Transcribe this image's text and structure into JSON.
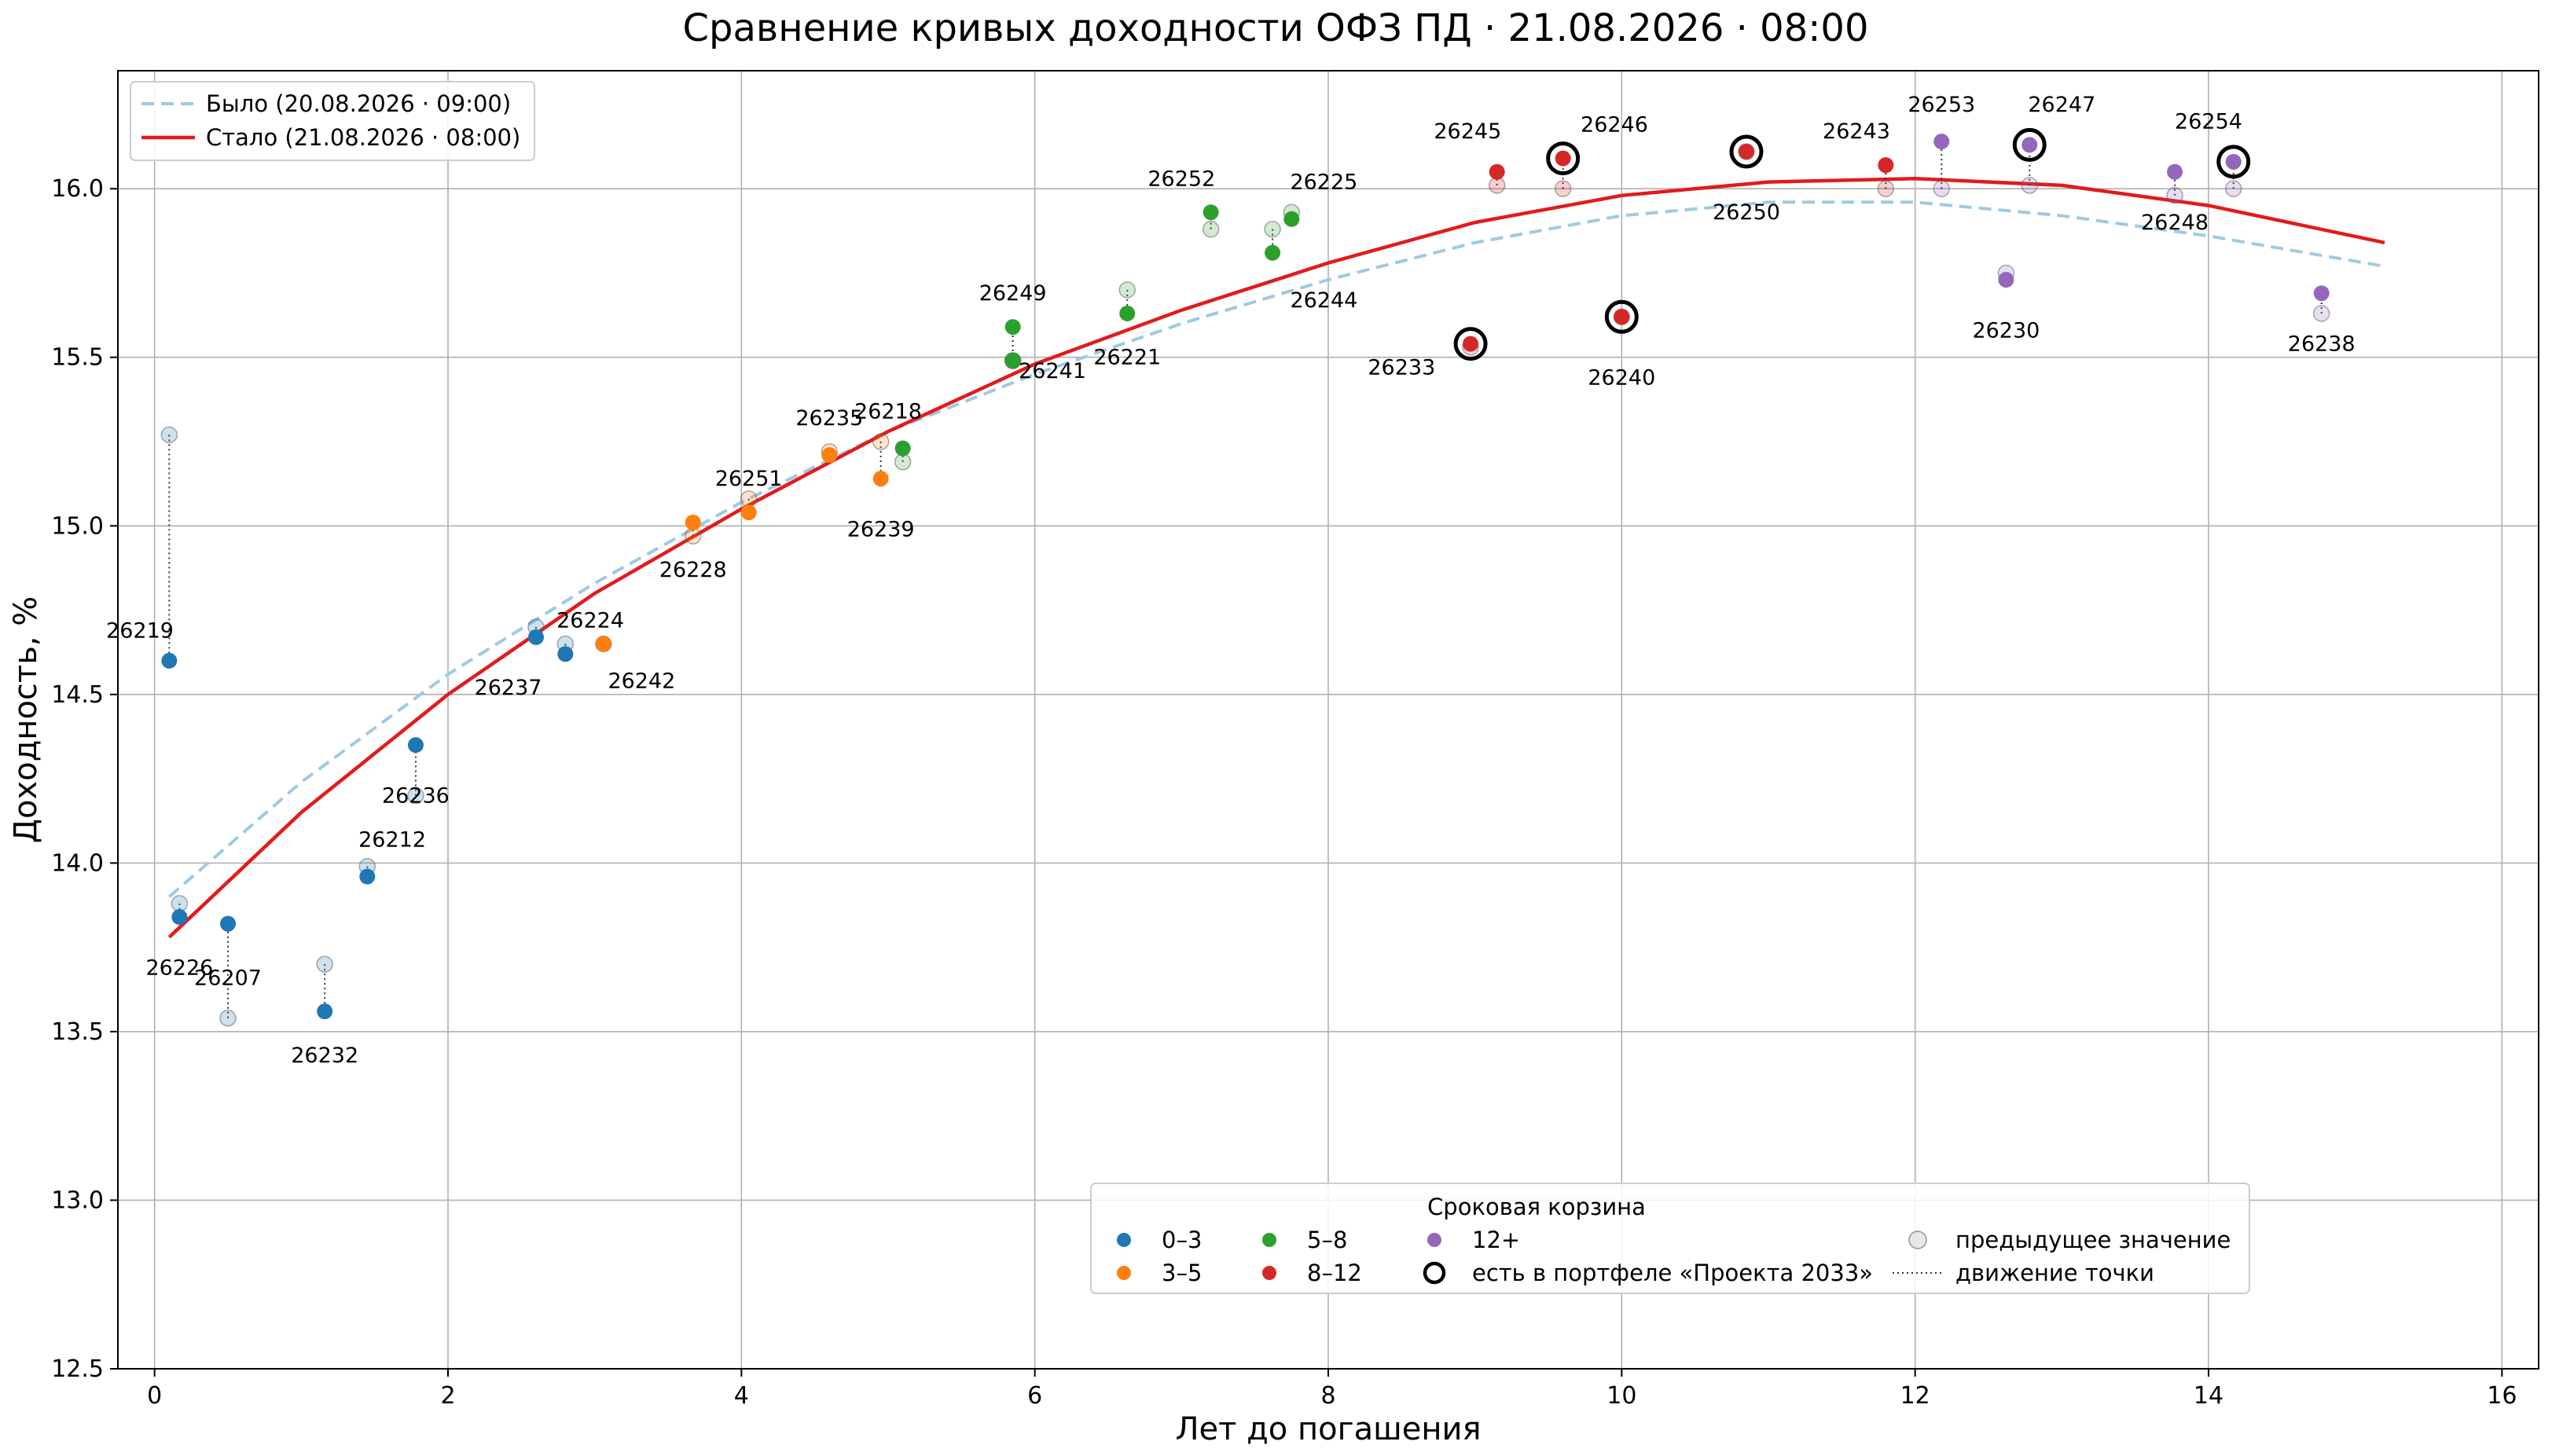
{
  "chart_data": {
    "type": "scatter",
    "title": "Сравнение кривых доходности ОФЗ ПД · 21.08.2026 · 08:00",
    "xlabel": "Лет до погашения",
    "ylabel": "Доходность, %",
    "xlim": [
      -0.25,
      16.25
    ],
    "ylim": [
      12.5,
      16.35
    ],
    "xticks": [
      0,
      2,
      4,
      6,
      8,
      10,
      12,
      14,
      16
    ],
    "yticks": [
      12.5,
      13.0,
      13.5,
      14.0,
      14.5,
      15.0,
      15.5,
      16.0
    ],
    "grid": true,
    "colors": {
      "0–3": "#1f77b4",
      "3–5": "#ff7f0e",
      "5–8": "#2ca02c",
      "8–12": "#d62728",
      "12+": "#9467bd",
      "curve_old": "#9ecae1",
      "curve_new": "#e31a1c"
    },
    "curves": [
      {
        "name": "Было (20.08.2026 · 09:00)",
        "style": "dashed",
        "color": "#9ecae1",
        "x": [
          0.1,
          1,
          2,
          3,
          4,
          5,
          6,
          7,
          8,
          9,
          10,
          11,
          12,
          13,
          14,
          15.2
        ],
        "y": [
          13.9,
          14.24,
          14.56,
          14.83,
          15.07,
          15.28,
          15.45,
          15.6,
          15.73,
          15.84,
          15.92,
          15.96,
          15.96,
          15.92,
          15.86,
          15.77
        ]
      },
      {
        "name": "Стало (21.08.2026 · 08:00)",
        "style": "solid",
        "color": "#e31a1c",
        "x": [
          0.1,
          1,
          2,
          3,
          4,
          5,
          6,
          7,
          8,
          9,
          10,
          11,
          12,
          13,
          14,
          15.2
        ],
        "y": [
          13.78,
          14.15,
          14.5,
          14.8,
          15.05,
          15.28,
          15.48,
          15.64,
          15.78,
          15.9,
          15.98,
          16.02,
          16.03,
          16.01,
          15.95,
          15.84
        ]
      }
    ],
    "points": [
      {
        "id": "26219",
        "x": 0.1,
        "y": 14.6,
        "prev": 15.27,
        "bucket": "0–3",
        "portfolio": false,
        "lx": -0.1,
        "ly": 14.69
      },
      {
        "id": "26226",
        "x": 0.17,
        "y": 13.84,
        "prev": 13.88,
        "bucket": "0–3",
        "portfolio": false,
        "lx": 0.17,
        "ly": 13.69
      },
      {
        "id": "26207",
        "x": 0.5,
        "y": 13.82,
        "prev": 13.54,
        "bucket": "0–3",
        "portfolio": false,
        "lx": 0.5,
        "ly": 13.66
      },
      {
        "id": "26232",
        "x": 1.16,
        "y": 13.56,
        "prev": 13.7,
        "bucket": "0–3",
        "portfolio": false,
        "lx": 1.16,
        "ly": 13.43
      },
      {
        "id": "26212",
        "x": 1.45,
        "y": 13.96,
        "prev": 13.99,
        "bucket": "0–3",
        "portfolio": false,
        "lx": 1.62,
        "ly": 14.07
      },
      {
        "id": "26236",
        "x": 1.78,
        "y": 14.35,
        "prev": 14.2,
        "bucket": "0–3",
        "portfolio": false,
        "lx": 1.78,
        "ly": 14.2
      },
      {
        "id": "26237",
        "x": 2.6,
        "y": 14.67,
        "prev": 14.7,
        "bucket": "0–3",
        "portfolio": false,
        "lx": 2.41,
        "ly": 14.52
      },
      {
        "id": "26224",
        "x": 2.8,
        "y": 14.62,
        "prev": 14.65,
        "bucket": "0–3",
        "portfolio": false,
        "lx": 2.97,
        "ly": 14.72
      },
      {
        "id": "26242",
        "x": 3.06,
        "y": 14.65,
        "prev": 14.65,
        "bucket": "3–5",
        "portfolio": false,
        "lx": 3.32,
        "ly": 14.54
      },
      {
        "id": "26228",
        "x": 3.67,
        "y": 15.01,
        "prev": 14.97,
        "bucket": "3–5",
        "portfolio": false,
        "lx": 3.67,
        "ly": 14.87
      },
      {
        "id": "26251",
        "x": 4.05,
        "y": 15.04,
        "prev": 15.08,
        "bucket": "3–5",
        "portfolio": false,
        "lx": 4.05,
        "ly": 15.14
      },
      {
        "id": "26235",
        "x": 4.6,
        "y": 15.21,
        "prev": 15.22,
        "bucket": "3–5",
        "portfolio": false,
        "lx": 4.6,
        "ly": 15.32
      },
      {
        "id": "26239",
        "x": 4.95,
        "y": 15.14,
        "prev": 15.25,
        "bucket": "3–5",
        "portfolio": false,
        "lx": 4.95,
        "ly": 14.99
      },
      {
        "id": "26218",
        "x": 5.1,
        "y": 15.23,
        "prev": 15.19,
        "bucket": "5–8",
        "portfolio": false,
        "lx": 5.0,
        "ly": 15.34
      },
      {
        "id": "26249",
        "x": 5.85,
        "y": 15.59,
        "prev": 15.49,
        "bucket": "5–8",
        "portfolio": false,
        "lx": 5.85,
        "ly": 15.69
      },
      {
        "id": "26241",
        "x": 5.85,
        "y": 15.49,
        "prev": 15.49,
        "bucket": "5–8",
        "portfolio": false,
        "lx": 6.12,
        "ly": 15.46
      },
      {
        "id": "26221",
        "x": 6.63,
        "y": 15.63,
        "prev": 15.7,
        "bucket": "5–8",
        "portfolio": false,
        "lx": 6.63,
        "ly": 15.5
      },
      {
        "id": "26252",
        "x": 7.2,
        "y": 15.93,
        "prev": 15.88,
        "bucket": "5–8",
        "portfolio": false,
        "lx": 7.0,
        "ly": 16.03
      },
      {
        "id": "26225",
        "x": 7.75,
        "y": 15.91,
        "prev": 15.93,
        "bucket": "5–8",
        "portfolio": false,
        "lx": 7.97,
        "ly": 16.02
      },
      {
        "id": "26244",
        "x": 7.62,
        "y": 15.81,
        "prev": 15.88,
        "bucket": "5–8",
        "portfolio": false,
        "lx": 7.97,
        "ly": 15.67
      },
      {
        "id": "26245",
        "x": 9.15,
        "y": 16.05,
        "prev": 16.01,
        "bucket": "8–12",
        "portfolio": false,
        "lx": 8.95,
        "ly": 16.17
      },
      {
        "id": "26246",
        "x": 9.6,
        "y": 16.09,
        "prev": 16.0,
        "bucket": "8–12",
        "portfolio": true,
        "lx": 9.95,
        "ly": 16.19
      },
      {
        "id": "26233",
        "x": 8.97,
        "y": 15.54,
        "prev": 15.53,
        "bucket": "8–12",
        "portfolio": true,
        "lx": 8.5,
        "ly": 15.47
      },
      {
        "id": "26240",
        "x": 10.0,
        "y": 15.62,
        "prev": 15.62,
        "bucket": "8–12",
        "portfolio": true,
        "lx": 10.0,
        "ly": 15.44
      },
      {
        "id": "26250",
        "x": 10.85,
        "y": 16.11,
        "prev": 16.11,
        "bucket": "8–12",
        "portfolio": true,
        "lx": 10.85,
        "ly": 15.93
      },
      {
        "id": "26243",
        "x": 11.8,
        "y": 16.07,
        "prev": 16.0,
        "bucket": "8–12",
        "portfolio": false,
        "lx": 11.6,
        "ly": 16.17
      },
      {
        "id": "26253",
        "x": 12.18,
        "y": 16.14,
        "prev": 16.0,
        "bucket": "12+",
        "portfolio": false,
        "lx": 12.18,
        "ly": 16.25
      },
      {
        "id": "26230",
        "x": 12.62,
        "y": 15.73,
        "prev": 15.75,
        "bucket": "12+",
        "portfolio": false,
        "lx": 12.62,
        "ly": 15.58
      },
      {
        "id": "26247",
        "x": 12.78,
        "y": 16.13,
        "prev": 16.01,
        "bucket": "12+",
        "portfolio": true,
        "lx": 13.0,
        "ly": 16.25
      },
      {
        "id": "26248",
        "x": 13.77,
        "y": 16.05,
        "prev": 15.98,
        "bucket": "12+",
        "portfolio": false,
        "lx": 13.77,
        "ly": 15.9
      },
      {
        "id": "26254",
        "x": 14.17,
        "y": 16.08,
        "prev": 16.0,
        "bucket": "12+",
        "portfolio": true,
        "lx": 14.0,
        "ly": 16.2
      },
      {
        "id": "26238",
        "x": 14.77,
        "y": 15.69,
        "prev": 15.63,
        "bucket": "12+",
        "portfolio": false,
        "lx": 14.77,
        "ly": 15.54
      }
    ],
    "legend_curves": {
      "placement": "upper-left",
      "entries": [
        "Было (20.08.2026 · 09:00)",
        "Стало (21.08.2026 · 08:00)"
      ]
    },
    "legend_buckets": {
      "title": "Сроковая корзина",
      "placement": "lower-right",
      "entries": [
        {
          "label": "0–3",
          "kind": "dot",
          "color": "#1f77b4"
        },
        {
          "label": "3–5",
          "kind": "dot",
          "color": "#ff7f0e"
        },
        {
          "label": "5–8",
          "kind": "dot",
          "color": "#2ca02c"
        },
        {
          "label": "8–12",
          "kind": "dot",
          "color": "#d62728"
        },
        {
          "label": "12+",
          "kind": "dot",
          "color": "#9467bd"
        },
        {
          "label": "есть в портфеле «Проекта 2033»",
          "kind": "ring"
        },
        {
          "label": "предыдущее значение",
          "kind": "prev"
        },
        {
          "label": "движение точки",
          "kind": "dotted"
        }
      ]
    }
  }
}
